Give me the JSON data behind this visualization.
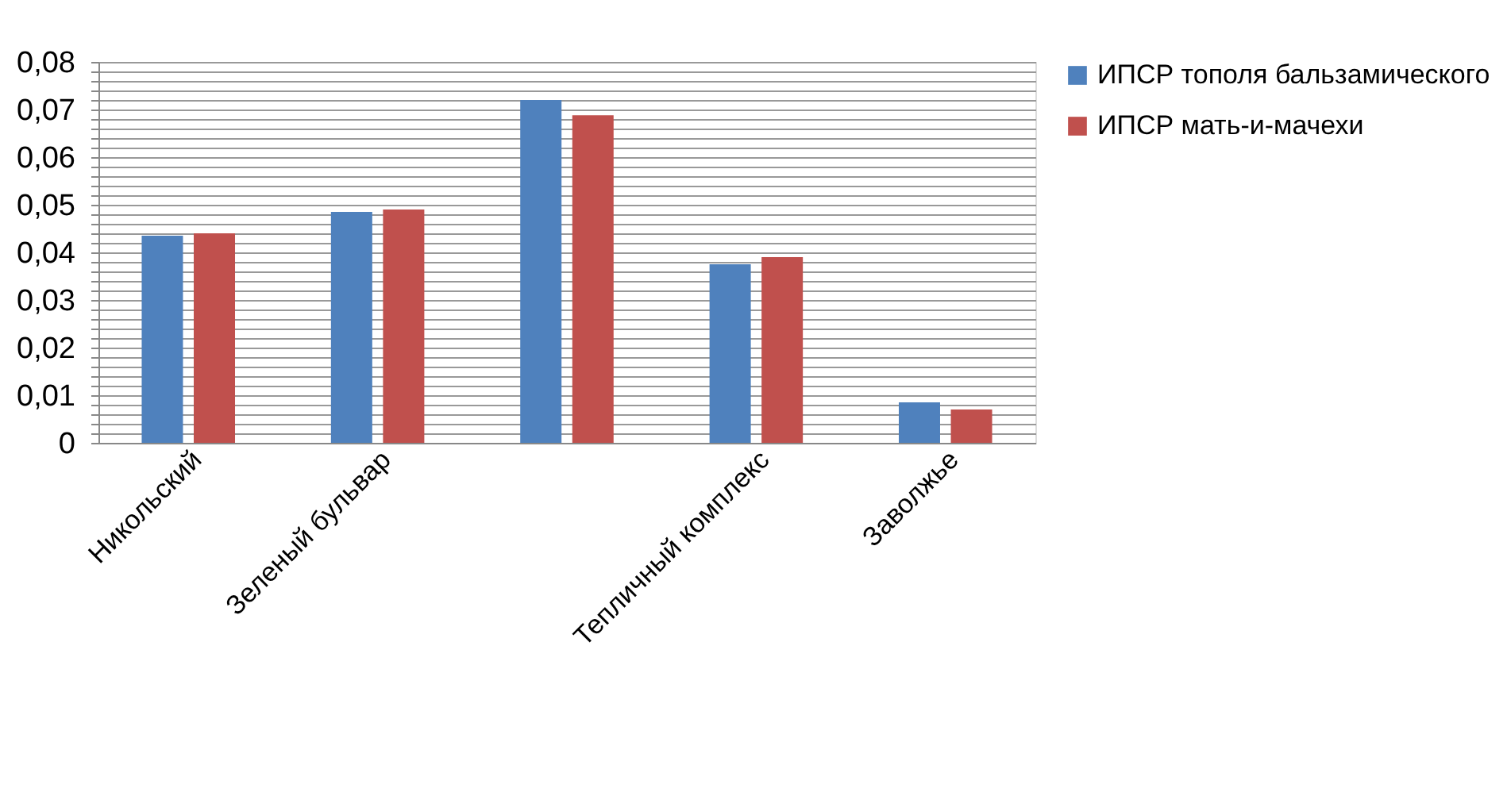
{
  "chart_data": {
    "type": "bar",
    "categories": [
      "Никольский",
      "Зеленый бульвар",
      null,
      "Тепличный комплекс",
      "Заволжье"
    ],
    "series": [
      {
        "name": "ИПСР тополя бальзамического",
        "color": "#4f81bd",
        "values": [
          0.0435,
          0.0485,
          0.072,
          0.0375,
          0.0085
        ]
      },
      {
        "name": "ИПСР  мать-и-мачехи",
        "color": "#c0504d",
        "values": [
          0.044,
          0.049,
          0.0688,
          0.039,
          0.007
        ]
      }
    ],
    "ylim": [
      0,
      0.08
    ],
    "yticks": [
      {
        "value": 0,
        "label": "0"
      },
      {
        "value": 0.002,
        "label": null
      },
      {
        "value": 0.004,
        "label": null
      },
      {
        "value": 0.006,
        "label": null
      },
      {
        "value": 0.008,
        "label": null
      },
      {
        "value": 0.01,
        "label": "0,01"
      },
      {
        "value": 0.012,
        "label": null
      },
      {
        "value": 0.014,
        "label": null
      },
      {
        "value": 0.016,
        "label": null
      },
      {
        "value": 0.018,
        "label": null
      },
      {
        "value": 0.02,
        "label": "0,02"
      },
      {
        "value": 0.022,
        "label": null
      },
      {
        "value": 0.024,
        "label": null
      },
      {
        "value": 0.026,
        "label": null
      },
      {
        "value": 0.028,
        "label": null
      },
      {
        "value": 0.03,
        "label": "0,03"
      },
      {
        "value": 0.032,
        "label": null
      },
      {
        "value": 0.034,
        "label": null
      },
      {
        "value": 0.036,
        "label": null
      },
      {
        "value": 0.038,
        "label": null
      },
      {
        "value": 0.04,
        "label": "0,04"
      },
      {
        "value": 0.042,
        "label": null
      },
      {
        "value": 0.044,
        "label": null
      },
      {
        "value": 0.046,
        "label": null
      },
      {
        "value": 0.048,
        "label": null
      },
      {
        "value": 0.05,
        "label": "0,05"
      },
      {
        "value": 0.052,
        "label": null
      },
      {
        "value": 0.054,
        "label": null
      },
      {
        "value": 0.056,
        "label": null
      },
      {
        "value": 0.058,
        "label": null
      },
      {
        "value": 0.06,
        "label": "0,06"
      },
      {
        "value": 0.062,
        "label": null
      },
      {
        "value": 0.064,
        "label": null
      },
      {
        "value": 0.066,
        "label": null
      },
      {
        "value": 0.068,
        "label": null
      },
      {
        "value": 0.07,
        "label": "0,07"
      },
      {
        "value": 0.072,
        "label": null
      },
      {
        "value": 0.074,
        "label": null
      },
      {
        "value": 0.076,
        "label": null
      },
      {
        "value": 0.078,
        "label": null
      },
      {
        "value": 0.08,
        "label": "0,08"
      }
    ],
    "grid": "y",
    "legend": "right"
  }
}
